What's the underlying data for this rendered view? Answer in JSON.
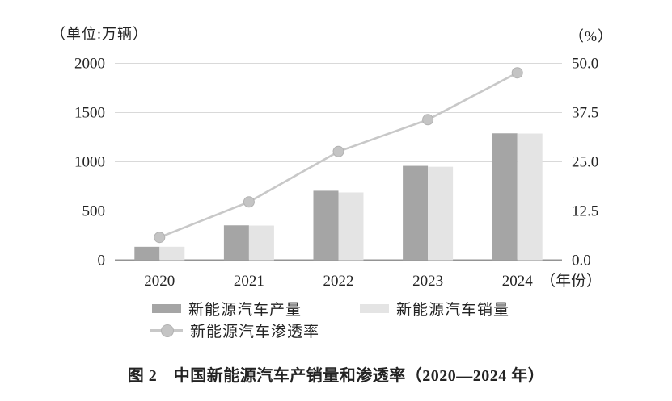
{
  "unit_left": "（单位:万辆）",
  "unit_right": "（%）",
  "x_axis_suffix": "（年份）",
  "caption": "图 2　中国新能源汽车产销量和渗透率（2020—2024 年）",
  "legend": {
    "production": "新能源汽车产量",
    "sales": "新能源汽车销量",
    "penetration": "新能源汽车渗透率"
  },
  "colors": {
    "production_bar": "#a5a5a5",
    "sales_bar": "#e4e4e4",
    "penetration_line": "#c8c8c8",
    "penetration_dot_fill": "#c4c4c4",
    "penetration_dot_stroke": "#b2b2b2",
    "gridline": "#d9d9d9",
    "axis_line": "#949494",
    "text": "#232323"
  },
  "chart_data": {
    "type": "bar",
    "subtype": "grouped-bars-with-line",
    "title": "图 2　中国新能源汽车产销量和渗透率（2020—2024 年）",
    "categories": [
      "2020",
      "2021",
      "2022",
      "2023",
      "2024"
    ],
    "series": [
      {
        "name": "新能源汽车产量",
        "type": "bar",
        "axis": "left",
        "values": [
          136.6,
          354.5,
          705.8,
          958.7,
          1288.8
        ]
      },
      {
        "name": "新能源汽车销量",
        "type": "bar",
        "axis": "left",
        "values": [
          136.7,
          352.1,
          688.7,
          949.5,
          1286.6
        ]
      },
      {
        "name": "新能源汽车渗透率",
        "type": "line",
        "axis": "right",
        "values": [
          5.8,
          14.8,
          27.6,
          35.7,
          47.6
        ]
      }
    ],
    "left_axis": {
      "label": "（单位:万辆）",
      "range": [
        0,
        2000
      ],
      "ticks": [
        0,
        500,
        1000,
        1500,
        2000
      ],
      "tick_labels": [
        "0",
        "500",
        "1000",
        "1500",
        "2000"
      ]
    },
    "right_axis": {
      "label": "（%）",
      "range": [
        0,
        50
      ],
      "ticks": [
        0,
        12.5,
        25,
        37.5,
        50
      ],
      "tick_labels": [
        "0.0",
        "12.5",
        "25.0",
        "37.5",
        "50.0"
      ]
    },
    "xlabel": "（年份）",
    "grid": true,
    "legend_position": "bottom"
  }
}
